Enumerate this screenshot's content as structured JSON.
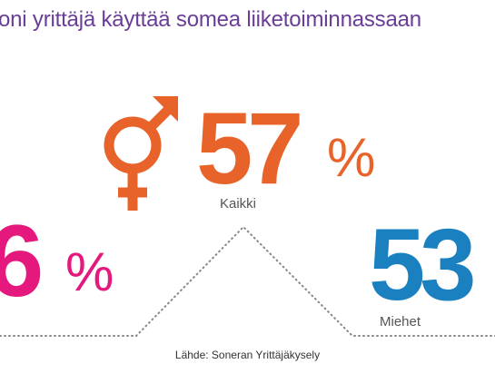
{
  "headline": "oni yrittäjä käyttää somea liiketoiminnassaan",
  "colors": {
    "headline": "#6a3d96",
    "all": "#e8632a",
    "women": "#e4187d",
    "men": "#1a80c0",
    "caption": "#555555",
    "dots": "#888888"
  },
  "stats": {
    "all": {
      "value": "57",
      "unit": "%",
      "label": "Kaikki",
      "icon": "gender-male-female-icon"
    },
    "women": {
      "value": "6",
      "unit": "%"
    },
    "men": {
      "value": "53",
      "label": "Miehet"
    }
  },
  "source": "Lähde: Soneran Yrittäjäkysely"
}
